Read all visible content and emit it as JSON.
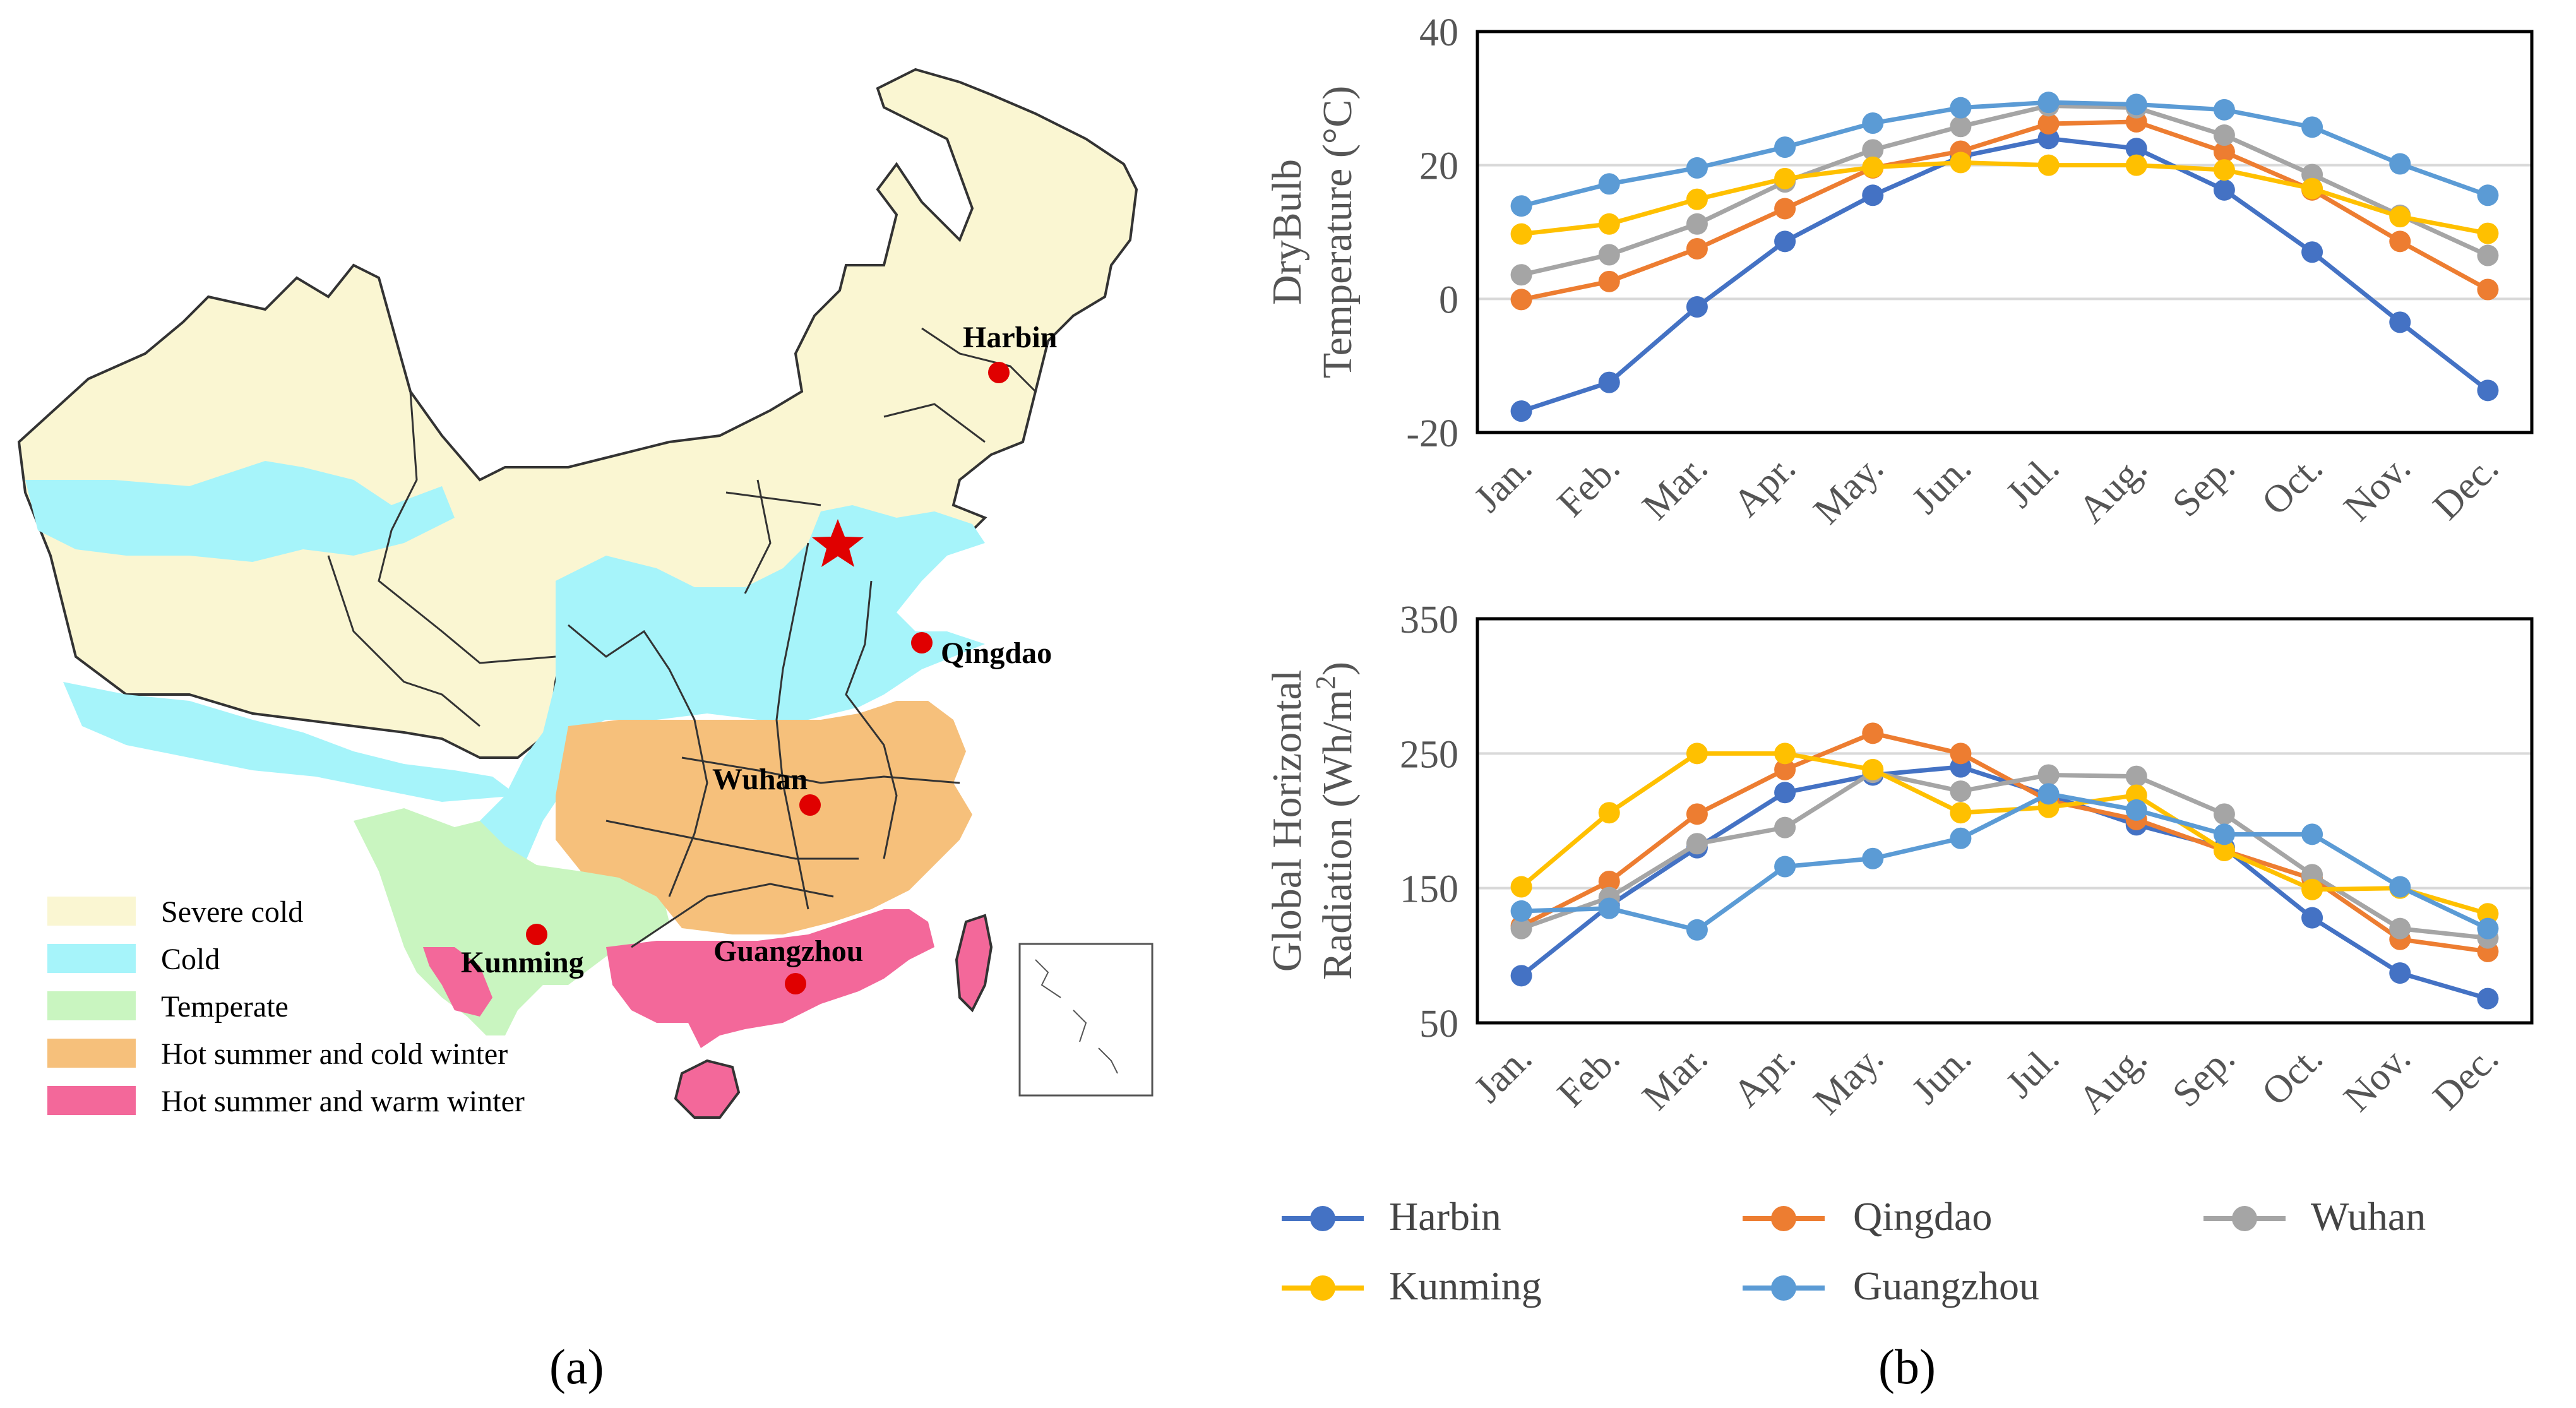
{
  "colors": {
    "Harbin": "#4472C4",
    "Qingdao": "#ED7D31",
    "Wuhan": "#A5A5A5",
    "Kunming": "#FFC000",
    "Guangzhou": "#5B9BD5",
    "severe_cold": "#FAF6D2",
    "cold": "#A6F4FA",
    "temperate": "#C9F5C0",
    "hot_summer_cold_winter": "#F6C07B",
    "hot_summer_warm_winter": "#F3689A"
  },
  "map": {
    "caption": "(a)",
    "cities": [
      "Harbin",
      "Qingdao",
      "Wuhan",
      "Kunming",
      "Guangzhou"
    ],
    "legend": [
      "Severe cold",
      "Cold",
      "Temperate",
      "Hot summer and cold winter",
      "Hot summer and warm winter"
    ],
    "capital_icon": "star-icon"
  },
  "chart_caption": "(b)",
  "chart_data": [
    {
      "type": "line",
      "title": "",
      "xlabel": "",
      "ylabel_line1": "DryBulb",
      "ylabel_line2": "Temperature (°C)",
      "ylim": [
        -20,
        40
      ],
      "yticks": [
        -20,
        0,
        20,
        40
      ],
      "grid": true,
      "categories": [
        "Jan.",
        "Feb.",
        "Mar.",
        "Apr.",
        "May.",
        "Jun.",
        "Jul.",
        "Aug.",
        "Sep.",
        "Oct.",
        "Nov.",
        "Dec."
      ],
      "series": [
        {
          "name": "Harbin",
          "values": [
            -16.8,
            -12.5,
            -1.2,
            8.6,
            15.5,
            21.3,
            24.0,
            22.5,
            16.3,
            7.0,
            -3.5,
            -13.7
          ]
        },
        {
          "name": "Qingdao",
          "values": [
            -0.1,
            2.6,
            7.5,
            13.5,
            19.6,
            22.1,
            26.2,
            26.5,
            22.0,
            16.3,
            8.6,
            1.4
          ]
        },
        {
          "name": "Wuhan",
          "values": [
            3.6,
            6.6,
            11.2,
            17.5,
            22.3,
            25.8,
            28.9,
            28.6,
            24.5,
            18.6,
            12.5,
            6.5
          ]
        },
        {
          "name": "Kunming",
          "values": [
            9.7,
            11.2,
            14.9,
            18.0,
            19.7,
            20.4,
            20.0,
            20.0,
            19.3,
            16.5,
            12.3,
            9.8
          ]
        },
        {
          "name": "Guangzhou",
          "values": [
            13.9,
            17.2,
            19.6,
            22.7,
            26.3,
            28.6,
            29.4,
            29.1,
            28.3,
            25.7,
            20.2,
            15.5
          ]
        }
      ]
    },
    {
      "type": "line",
      "title": "",
      "xlabel": "",
      "ylabel_line1": "Global Horizontal",
      "ylabel_line2": "Radiation (Wh/m",
      "ylabel_sup": "2",
      "ylabel_close": ")",
      "ylim": [
        50,
        350
      ],
      "yticks": [
        50,
        150,
        250,
        350
      ],
      "grid": true,
      "categories": [
        "Jan.",
        "Feb.",
        "Mar.",
        "Apr.",
        "May.",
        "Jun.",
        "Jul.",
        "Aug.",
        "Sep.",
        "Oct.",
        "Nov.",
        "Dec."
      ],
      "series": [
        {
          "name": "Harbin",
          "values": [
            85,
            137,
            180,
            221,
            234,
            240,
            219,
            197,
            180,
            128,
            87,
            68
          ]
        },
        {
          "name": "Qingdao",
          "values": [
            122,
            155,
            205,
            238,
            265,
            250,
            215,
            201,
            178,
            157,
            112,
            103
          ]
        },
        {
          "name": "Wuhan",
          "values": [
            120,
            143,
            183,
            195,
            236,
            222,
            234,
            233,
            205,
            160,
            120,
            113
          ]
        },
        {
          "name": "Kunming",
          "values": [
            151,
            206,
            250,
            250,
            238,
            206,
            210,
            219,
            178,
            149,
            150,
            131
          ]
        },
        {
          "name": "Guangzhou",
          "values": [
            133,
            135,
            119,
            166,
            172,
            187,
            220,
            208,
            190,
            190,
            151,
            120
          ]
        }
      ]
    }
  ],
  "legend": {
    "entries": [
      "Harbin",
      "Qingdao",
      "Wuhan",
      "Kunming",
      "Guangzhou"
    ]
  }
}
